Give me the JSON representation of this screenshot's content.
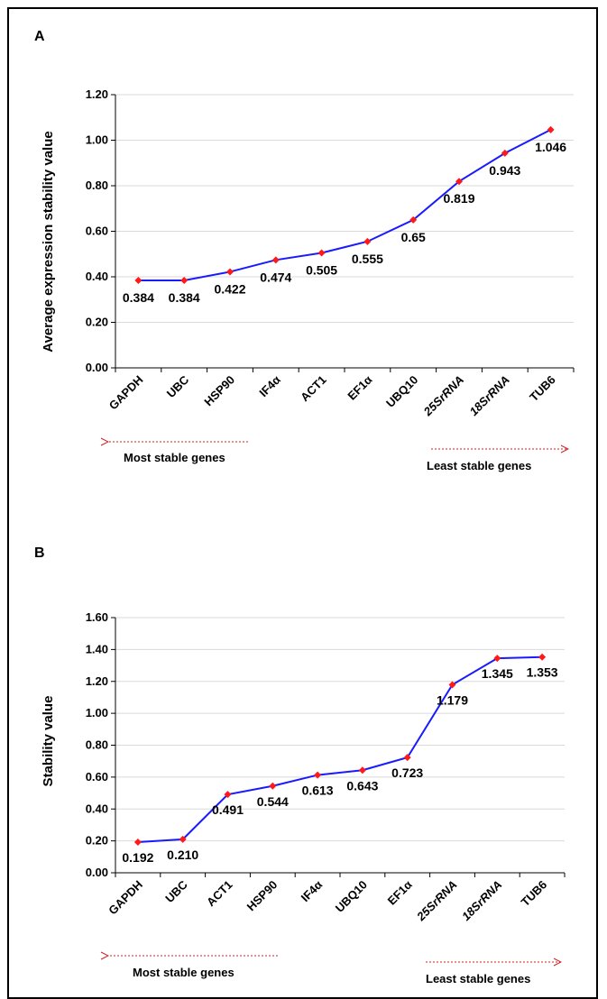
{
  "colors": {
    "line": "#1a1aff",
    "marker": "#ff1a1a",
    "grid": "#d9d9d9",
    "arrow": "#cc2222",
    "axis": "#000000"
  },
  "chart_data": [
    {
      "type": "line",
      "panel_label": "A",
      "ylabel": "Average expression stability value",
      "xlabel": "",
      "ylim": [
        0,
        1.2
      ],
      "yticks": [
        "0.00",
        "0.20",
        "0.40",
        "0.60",
        "0.80",
        "1.00",
        "1.20"
      ],
      "grid": true,
      "categories": [
        "GAPDH",
        "UBC",
        "HSP90",
        "IF4α",
        "ACT1",
        "EF1α",
        "UBQ10",
        "25SrRNA",
        "18SrRNA",
        "TUB6"
      ],
      "italic_part": [
        "",
        "",
        "",
        "",
        "",
        "",
        "",
        "SrRNA",
        "SrRNA",
        ""
      ],
      "values": [
        0.384,
        0.384,
        0.422,
        0.474,
        0.505,
        0.555,
        0.65,
        0.819,
        0.943,
        1.046
      ],
      "data_labels": [
        "0.384",
        "0.384",
        "0.422",
        "0.474",
        "0.505",
        "0.555",
        "0.65",
        "0.819",
        "0.943",
        "1.046"
      ],
      "left_note": "Most stable genes",
      "right_note": "Least stable genes"
    },
    {
      "type": "line",
      "panel_label": "B",
      "ylabel": "Stability value",
      "xlabel": "",
      "ylim": [
        0,
        1.6
      ],
      "yticks": [
        "0.00",
        "0.20",
        "0.40",
        "0.60",
        "0.80",
        "1.00",
        "1.20",
        "1.40",
        "1.60"
      ],
      "grid": true,
      "categories": [
        "GAPDH",
        "UBC",
        "ACT1",
        "HSP90",
        "IF4α",
        "UBQ10",
        "EF1α",
        "25SrRNA",
        "18SrRNA",
        "TUB6"
      ],
      "italic_part": [
        "",
        "",
        "",
        "",
        "",
        "",
        "",
        "SrRNA",
        "SrRNA",
        ""
      ],
      "values": [
        0.192,
        0.21,
        0.491,
        0.544,
        0.613,
        0.643,
        0.723,
        1.179,
        1.345,
        1.353
      ],
      "data_labels": [
        "0.192",
        "0.210",
        "0.491",
        "0.544",
        "0.613",
        "0.643",
        "0.723",
        "1.179",
        "1.345",
        "1.353"
      ],
      "left_note": "Most stable genes",
      "right_note": "Least stable genes"
    }
  ]
}
